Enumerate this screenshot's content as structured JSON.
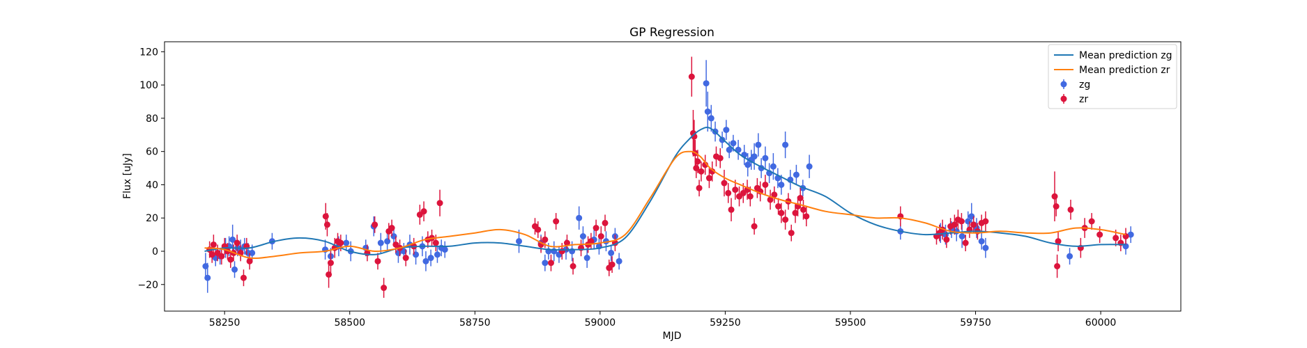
{
  "chart_data": {
    "type": "scatter",
    "title": "GP Regression",
    "xlabel": "MJD",
    "ylabel": "Flux [uJy]",
    "xlim": [
      58130,
      60160
    ],
    "ylim": [
      -36,
      126
    ],
    "xticks": [
      58250,
      58500,
      58750,
      59000,
      59250,
      59500,
      59750,
      60000
    ],
    "yticks": [
      -20,
      0,
      20,
      40,
      60,
      80,
      100,
      120
    ],
    "grid": false,
    "legend_position": "top-right",
    "legend": [
      "Mean prediction zg",
      "Mean prediction zr",
      "zg",
      "zr"
    ],
    "colors": {
      "mean_zg": "#1f77b4",
      "mean_zr": "#ff7f0e",
      "zg": "#4169e1",
      "zr": "#dc143c"
    },
    "mean_curves": [
      {
        "name": "Mean prediction zg",
        "x": [
          58210,
          58250,
          58300,
          58350,
          58400,
          58450,
          58500,
          58550,
          58600,
          58650,
          58700,
          58750,
          58800,
          58850,
          58900,
          58950,
          59000,
          59050,
          59100,
          59150,
          59180,
          59200,
          59220,
          59250,
          59280,
          59320,
          59360,
          59400,
          59450,
          59500,
          59550,
          59600,
          59650,
          59700,
          59750,
          59800,
          59850,
          59900,
          59950,
          60000,
          60050
        ],
        "y": [
          0,
          2,
          2,
          6,
          8,
          6,
          0,
          -2,
          2,
          3,
          3,
          5,
          5,
          3,
          1,
          1,
          2,
          8,
          30,
          57,
          68,
          73,
          74,
          66,
          58,
          51,
          45,
          39,
          33,
          23,
          16,
          12,
          10,
          11,
          12,
          11,
          9,
          5,
          3,
          4,
          4
        ]
      },
      {
        "name": "Mean prediction zr",
        "x": [
          58210,
          58250,
          58300,
          58350,
          58400,
          58450,
          58500,
          58550,
          58600,
          58650,
          58700,
          58750,
          58800,
          58850,
          58900,
          58950,
          59000,
          59050,
          59100,
          59150,
          59180,
          59200,
          59220,
          59250,
          59280,
          59320,
          59360,
          59400,
          59450,
          59500,
          59550,
          59600,
          59650,
          59700,
          59750,
          59800,
          59850,
          59900,
          59950,
          60000,
          60050
        ],
        "y": [
          2,
          1,
          -4,
          -3,
          -1,
          0,
          3,
          0,
          2,
          7,
          9,
          11,
          13,
          10,
          3,
          4,
          5,
          10,
          32,
          56,
          60,
          57,
          50,
          44,
          40,
          35,
          31,
          28,
          24,
          22,
          20,
          20,
          17,
          12,
          11,
          12,
          11,
          11,
          14,
          13,
          10
        ]
      }
    ],
    "series": [
      {
        "name": "zg",
        "x": [
          58212,
          58216,
          58232,
          58241,
          58252,
          58259,
          58266,
          58270,
          58276,
          58282,
          58290,
          58297,
          58305,
          58345,
          58451,
          58462,
          58478,
          58493,
          58502,
          58532,
          58548,
          58562,
          58575,
          58588,
          58597,
          58608,
          58620,
          58632,
          58645,
          58652,
          58662,
          58675,
          58683,
          58690,
          58838,
          58882,
          58890,
          58897,
          58908,
          58918,
          58932,
          58944,
          58958,
          58966,
          58974,
          58988,
          58998,
          59012,
          59022,
          59030,
          59038,
          59212,
          59215,
          59222,
          59230,
          59244,
          59252,
          59258,
          59266,
          59276,
          59288,
          59295,
          59302,
          59308,
          59316,
          59322,
          59330,
          59338,
          59346,
          59355,
          59362,
          59370,
          59380,
          59392,
          59405,
          59418,
          59600,
          59680,
          59690,
          59702,
          59712,
          59723,
          59735,
          59742,
          59752,
          59762,
          59770,
          59938,
          60050,
          60060
        ],
        "y": [
          -9,
          -16,
          -4,
          -3,
          2,
          3,
          7,
          -11,
          2,
          1,
          3,
          -1,
          -1,
          6,
          1,
          -3,
          3,
          5,
          0,
          2,
          15,
          5,
          6,
          9,
          -1,
          0,
          4,
          -2,
          3,
          -6,
          -4,
          -2,
          2,
          1,
          6,
          5,
          -7,
          0,
          0,
          -2,
          1,
          0,
          20,
          9,
          -4,
          7,
          3,
          6,
          -1,
          9,
          -6,
          101,
          84,
          80,
          72,
          67,
          73,
          61,
          65,
          61,
          58,
          52,
          55,
          57,
          64,
          50,
          56,
          47,
          51,
          44,
          40,
          64,
          43,
          46,
          38,
          51,
          12,
          11,
          10,
          13,
          12,
          9,
          18,
          21,
          14,
          6,
          2,
          -3,
          3,
          10
        ],
        "err": [
          8,
          9,
          5,
          5,
          6,
          6,
          9,
          5,
          5,
          6,
          5,
          6,
          5,
          5,
          6,
          5,
          6,
          5,
          6,
          5,
          6,
          6,
          6,
          5,
          6,
          5,
          6,
          6,
          6,
          6,
          5,
          5,
          5,
          5,
          7,
          5,
          5,
          5,
          6,
          5,
          6,
          6,
          7,
          6,
          6,
          6,
          5,
          6,
          5,
          5,
          5,
          14,
          12,
          8,
          6,
          5,
          6,
          5,
          5,
          6,
          6,
          7,
          6,
          8,
          7,
          6,
          7,
          6,
          8,
          6,
          6,
          8,
          6,
          6,
          5,
          7,
          5,
          6,
          6,
          5,
          6,
          7,
          6,
          8,
          6,
          5,
          6,
          5,
          5,
          5
        ]
      },
      {
        "name": "zr",
        "x": [
          58220,
          58225,
          58228,
          58236,
          58244,
          58250,
          58256,
          58262,
          58268,
          58275,
          58282,
          58288,
          58294,
          58300,
          58452,
          58455,
          58458,
          58462,
          58470,
          58476,
          58482,
          58535,
          58550,
          58556,
          58568,
          58578,
          58584,
          58592,
          58600,
          58612,
          58628,
          58640,
          58648,
          58656,
          58664,
          58672,
          58680,
          58870,
          58876,
          58882,
          58890,
          58902,
          58912,
          58924,
          58934,
          58946,
          58962,
          58976,
          58982,
          58992,
          59002,
          59010,
          59018,
          59024,
          59030,
          59183,
          59186,
          59188,
          59190,
          59192,
          59195,
          59198,
          59202,
          59210,
          59218,
          59224,
          59232,
          59240,
          59248,
          59256,
          59262,
          59270,
          59278,
          59286,
          59294,
          59300,
          59308,
          59314,
          59320,
          59330,
          59340,
          59348,
          59356,
          59362,
          59370,
          59376,
          59382,
          59390,
          59395,
          59400,
          59406,
          59412,
          59600,
          59672,
          59678,
          59684,
          59692,
          59700,
          59708,
          59715,
          59722,
          59730,
          59738,
          59746,
          59754,
          59762,
          59770,
          59908,
          59911,
          59913,
          59915,
          59940,
          59960,
          59968,
          59982,
          59998,
          60030,
          60040,
          60050
        ],
        "y": [
          1,
          -2,
          4,
          -1,
          -3,
          3,
          0,
          -5,
          -1,
          5,
          -1,
          -16,
          3,
          -6,
          21,
          16,
          -14,
          -7,
          2,
          6,
          5,
          -1,
          16,
          -6,
          -22,
          12,
          14,
          4,
          2,
          -4,
          3,
          22,
          24,
          7,
          8,
          5,
          29,
          15,
          13,
          4,
          7,
          -7,
          18,
          0,
          5,
          -9,
          2,
          4,
          6,
          14,
          9,
          17,
          -10,
          -8,
          5,
          105,
          71,
          69,
          59,
          50,
          54,
          38,
          48,
          52,
          44,
          48,
          57,
          56,
          41,
          35,
          25,
          37,
          33,
          35,
          37,
          33,
          15,
          38,
          36,
          40,
          31,
          34,
          27,
          23,
          19,
          30,
          11,
          23,
          27,
          32,
          25,
          21,
          21,
          9,
          11,
          13,
          7,
          15,
          16,
          19,
          18,
          5,
          13,
          16,
          12,
          17,
          18,
          33,
          27,
          -9,
          6,
          25,
          2,
          14,
          18,
          10,
          8,
          5,
          9
        ],
        "err": [
          5,
          5,
          6,
          5,
          5,
          5,
          5,
          5,
          5,
          5,
          5,
          5,
          5,
          5,
          8,
          7,
          8,
          7,
          6,
          5,
          5,
          5,
          5,
          5,
          6,
          5,
          5,
          5,
          5,
          5,
          5,
          6,
          6,
          5,
          5,
          5,
          8,
          5,
          5,
          5,
          5,
          5,
          5,
          5,
          5,
          5,
          5,
          5,
          5,
          5,
          6,
          5,
          5,
          5,
          5,
          12,
          14,
          10,
          8,
          6,
          7,
          5,
          6,
          6,
          6,
          6,
          6,
          6,
          8,
          6,
          7,
          6,
          6,
          6,
          6,
          6,
          5,
          6,
          6,
          6,
          6,
          5,
          5,
          6,
          6,
          5,
          5,
          6,
          6,
          6,
          6,
          6,
          6,
          5,
          5,
          6,
          5,
          5,
          6,
          6,
          5,
          5,
          5,
          5,
          5,
          5,
          6,
          15,
          6,
          7,
          6,
          6,
          6,
          6,
          5,
          5,
          5,
          5,
          5
        ]
      }
    ]
  }
}
